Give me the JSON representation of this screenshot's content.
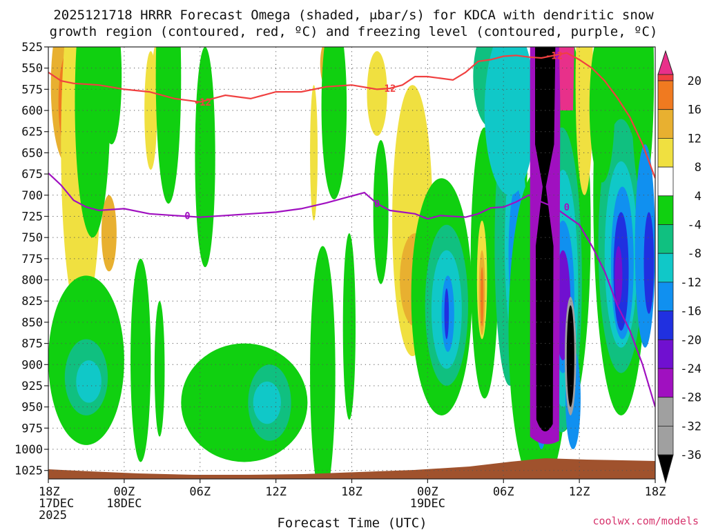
{
  "chart_data": {
    "type": "heatmap",
    "title_line1": "2025121718 HRRR Forecast Omega (shaded, μbar/s) for KDCA with dendritic snow",
    "title_line2": "growth region (contoured, red, ºC) and freezing level (contoured, purple, ºC)",
    "xlabel": "Forecast Time (UTC)",
    "credit": "coolwx.com/models",
    "x_range": [
      0,
      48
    ],
    "y_levels": [
      525,
      550,
      575,
      600,
      625,
      650,
      675,
      700,
      725,
      750,
      775,
      800,
      825,
      850,
      875,
      900,
      925,
      950,
      975,
      1000,
      1025
    ],
    "x_ticks": [
      {
        "hour": 0,
        "lines": [
          "18Z",
          "17DEC",
          "2025"
        ]
      },
      {
        "hour": 6,
        "lines": [
          "00Z",
          "18DEC"
        ]
      },
      {
        "hour": 12,
        "lines": [
          "06Z"
        ]
      },
      {
        "hour": 18,
        "lines": [
          "12Z"
        ]
      },
      {
        "hour": 24,
        "lines": [
          "18Z"
        ]
      },
      {
        "hour": 30,
        "lines": [
          "00Z",
          "19DEC"
        ]
      },
      {
        "hour": 36,
        "lines": [
          "06Z"
        ]
      },
      {
        "hour": 42,
        "lines": [
          "12Z"
        ]
      },
      {
        "hour": 48,
        "lines": [
          "18Z"
        ]
      }
    ],
    "colorbar": {
      "labels": [
        "20",
        "16",
        "12",
        "8",
        "4",
        "-4",
        "-8",
        "-12",
        "-16",
        "-20",
        "-24",
        "-28",
        "-32",
        "-36"
      ],
      "bins": [
        {
          "color": "#e8308a"
        },
        {
          "color": "#f04040"
        },
        {
          "color": "#f07a20"
        },
        {
          "color": "#e8b030"
        },
        {
          "color": "#f0e040"
        },
        {
          "color": "#ffffff"
        },
        {
          "color": "#10d010"
        },
        {
          "color": "#10c080"
        },
        {
          "color": "#10c8c8"
        },
        {
          "color": "#1090f0"
        },
        {
          "color": "#2030e0"
        },
        {
          "color": "#7010d0"
        },
        {
          "color": "#a010c0"
        },
        {
          "color": "#a0a0a0"
        }
      ],
      "top_color": "#e8308a",
      "bottom_color": "#000000"
    },
    "contours": [
      {
        "name": "dendritic-growth-minus12",
        "label": "-12",
        "color": "#f04040",
        "points": [
          [
            0,
            555
          ],
          [
            1,
            565
          ],
          [
            2,
            568
          ],
          [
            4,
            570
          ],
          [
            6,
            575
          ],
          [
            8,
            578
          ],
          [
            10,
            586
          ],
          [
            12,
            590
          ],
          [
            14,
            582
          ],
          [
            16,
            586
          ],
          [
            18,
            578
          ],
          [
            20,
            578
          ],
          [
            22,
            572
          ],
          [
            24,
            570
          ],
          [
            26,
            575
          ],
          [
            27,
            574
          ],
          [
            28,
            570
          ],
          [
            29,
            560
          ],
          [
            30,
            560
          ],
          [
            31,
            562
          ],
          [
            32,
            564
          ],
          [
            33,
            555
          ],
          [
            34,
            542
          ],
          [
            35,
            540
          ],
          [
            36,
            536
          ],
          [
            37,
            535
          ],
          [
            38,
            537
          ],
          [
            39,
            538
          ],
          [
            40,
            535
          ],
          [
            41,
            532
          ],
          [
            42,
            540
          ],
          [
            43,
            550
          ],
          [
            44,
            565
          ],
          [
            45,
            585
          ],
          [
            46,
            608
          ],
          [
            47,
            640
          ],
          [
            48,
            680
          ]
        ]
      },
      {
        "name": "freezing-level-0",
        "label": "0",
        "color": "#a010c0",
        "points": [
          [
            0,
            674
          ],
          [
            1,
            688
          ],
          [
            2,
            706
          ],
          [
            3,
            714
          ],
          [
            4,
            718
          ],
          [
            6,
            716
          ],
          [
            8,
            722
          ],
          [
            10,
            724
          ],
          [
            12,
            726
          ],
          [
            14,
            724
          ],
          [
            16,
            722
          ],
          [
            18,
            720
          ],
          [
            20,
            716
          ],
          [
            22,
            709
          ],
          [
            25,
            697
          ],
          [
            26,
            710
          ],
          [
            27,
            718
          ],
          [
            29,
            722
          ],
          [
            30,
            728
          ],
          [
            31,
            724
          ],
          [
            33,
            726
          ],
          [
            34,
            722
          ],
          [
            35,
            715
          ],
          [
            36,
            714
          ],
          [
            37,
            708
          ],
          [
            38,
            700
          ],
          [
            39,
            708
          ],
          [
            40,
            714
          ],
          [
            42,
            735
          ],
          [
            43,
            760
          ],
          [
            44,
            790
          ],
          [
            45,
            830
          ],
          [
            46,
            860
          ],
          [
            47,
            900
          ],
          [
            48,
            950
          ]
        ]
      }
    ]
  }
}
